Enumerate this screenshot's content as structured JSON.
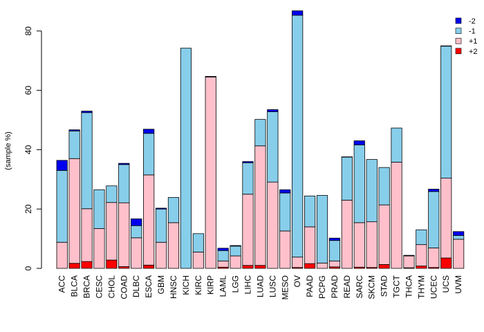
{
  "chart_data": {
    "type": "bar",
    "stacked": true,
    "title": "",
    "xlabel": "",
    "ylabel": "(sample %)",
    "ylim": [
      0,
      88
    ],
    "yticks": [
      0,
      20,
      40,
      60,
      80
    ],
    "grid": false,
    "legend_position": "top-right",
    "categories": [
      "ACC",
      "BLCA",
      "BRCA",
      "CESC",
      "CHOL",
      "COAD",
      "DLBC",
      "ESCA",
      "GBM",
      "HNSC",
      "KICH",
      "KIRC",
      "KIRP",
      "LAML",
      "LGG",
      "LIHC",
      "LUAD",
      "LUSC",
      "MESO",
      "OV",
      "PAAD",
      "PCPG",
      "PRAD",
      "READ",
      "SARC",
      "SKCM",
      "STAD",
      "TGCT",
      "THCA",
      "THYM",
      "UCEC",
      "UCS",
      "UVM"
    ],
    "series": [
      {
        "name": "+2",
        "color": "#ff0000",
        "values": [
          0,
          1.7,
          2.3,
          0,
          2.8,
          0.6,
          0,
          1.1,
          0,
          0,
          0,
          0,
          0,
          0.4,
          0,
          1.0,
          1.0,
          0,
          0,
          0.3,
          1.6,
          0,
          0.5,
          0,
          0.4,
          0.3,
          1.3,
          0,
          0.2,
          0.8,
          0.3,
          3.5,
          0
        ]
      },
      {
        "name": "+1",
        "color": "#ffc0cb",
        "values": [
          8.8,
          35.3,
          17.8,
          13.4,
          19.4,
          21.5,
          10.3,
          30.4,
          8.8,
          15.4,
          0,
          5.5,
          64.5,
          2.1,
          4.2,
          24.0,
          40.3,
          29.1,
          12.6,
          3.5,
          12.4,
          1.8,
          2.0,
          23.0,
          15.0,
          15.4,
          20.1,
          35.8,
          4.0,
          7.2,
          6.6,
          26.9,
          9.8
        ]
      },
      {
        "name": "-1",
        "color": "#87ceeb",
        "values": [
          24.2,
          9.3,
          32.4,
          13.1,
          5.6,
          12.9,
          4.1,
          14.0,
          11.2,
          8.5,
          74.2,
          6.2,
          0.2,
          3.5,
          3.3,
          10.6,
          8.9,
          23.7,
          12.8,
          81.5,
          10.4,
          22.8,
          6.9,
          14.5,
          26.2,
          21.0,
          12.6,
          11.5,
          0,
          5.0,
          19.0,
          44.5,
          1.3
        ]
      },
      {
        "name": "-2",
        "color": "#0000ee",
        "values": [
          3.4,
          0.4,
          0.5,
          0,
          0,
          0.4,
          2.3,
          1.4,
          0.3,
          0,
          0,
          0,
          0,
          0.8,
          0.2,
          0.4,
          0,
          0.7,
          1.1,
          1.5,
          0,
          0,
          0.8,
          0.1,
          1.4,
          0,
          0,
          0,
          0.2,
          0,
          0.8,
          0.1,
          1.3
        ]
      }
    ]
  }
}
